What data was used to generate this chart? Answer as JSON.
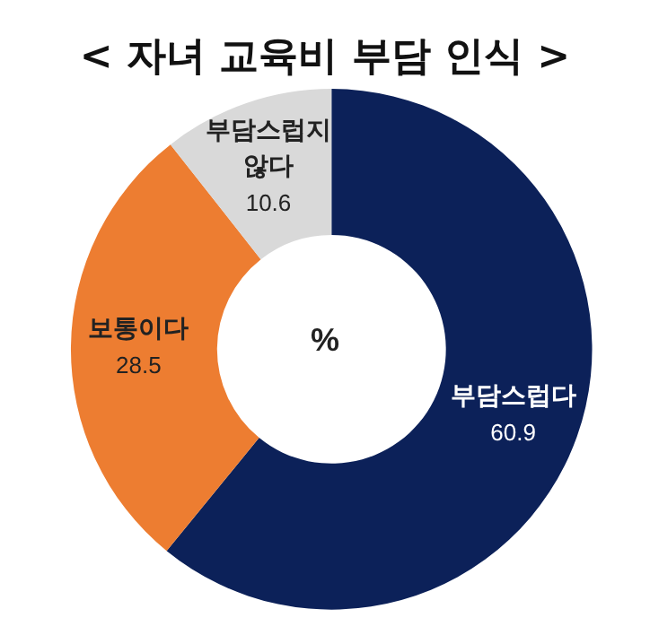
{
  "chart_data": {
    "type": "donut",
    "title": "< 자녀 교육비 부담 인식 >",
    "categories": [
      "부담스럽다",
      "보통이다",
      "부담스럽지 않다"
    ],
    "values": [
      60.9,
      28.5,
      10.6
    ],
    "colors": [
      "#0c2159",
      "#ed7d31",
      "#d9d9d9"
    ],
    "data_labels": true,
    "annotations": [
      "%"
    ],
    "legend": false
  }
}
